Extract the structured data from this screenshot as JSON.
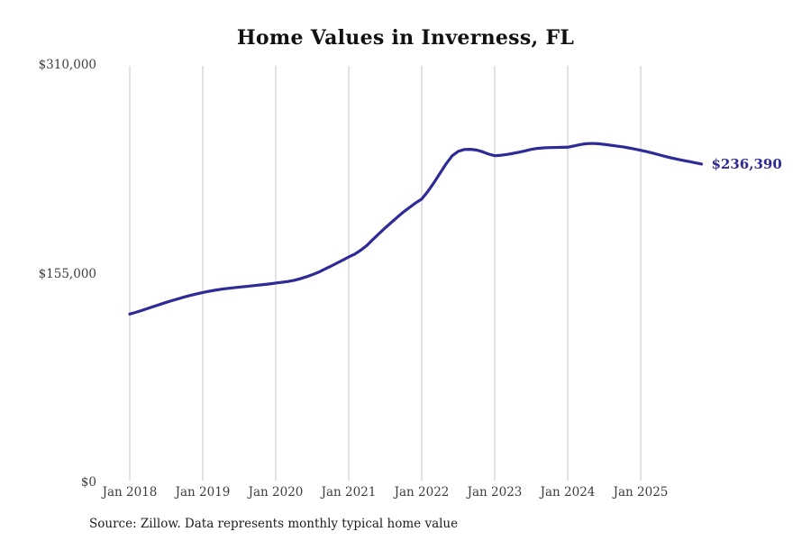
{
  "page": {
    "background": "#ffffff"
  },
  "chart_data": {
    "type": "line",
    "title": "Home Values in Inverness, FL",
    "xlabel": "",
    "ylabel": "",
    "ylim": [
      0,
      310000
    ],
    "grid": "vertical-only",
    "legend": "none",
    "x_unit": "month",
    "x_start": "2018-01",
    "x_end": "2025-11",
    "x_tick_labels": [
      "Jan 2018",
      "Jan 2019",
      "Jan 2020",
      "Jan 2021",
      "Jan 2022",
      "Jan 2023",
      "Jan 2024",
      "Jan 2025"
    ],
    "x_tick_month_indexes": [
      0,
      12,
      24,
      36,
      48,
      60,
      72,
      84
    ],
    "y_ticks": [
      {
        "label": "$0",
        "value": 0
      },
      {
        "label": "$155,000",
        "value": 155000
      },
      {
        "label": "$310,000",
        "value": 310000
      }
    ],
    "series": [
      {
        "name": "Monthly typical home value",
        "color": "#2e2b97",
        "values": [
          125000,
          126300,
          127700,
          129200,
          130700,
          132200,
          133700,
          135100,
          136400,
          137700,
          138900,
          140000,
          141000,
          141900,
          142700,
          143400,
          144000,
          144500,
          145000,
          145400,
          145900,
          146400,
          146900,
          147400,
          148000,
          148600,
          149200,
          150000,
          151200,
          152600,
          154200,
          156000,
          158200,
          160400,
          162700,
          165000,
          167400,
          169500,
          172500,
          176000,
          180500,
          184800,
          189000,
          193000,
          197000,
          200800,
          204200,
          207500,
          210400,
          216000,
          222500,
          229500,
          236500,
          242500,
          245800,
          247200,
          247300,
          246800,
          245500,
          243800,
          242600,
          242900,
          243500,
          244300,
          245200,
          246200,
          247300,
          248000,
          248400,
          248600,
          248700,
          248800,
          248900,
          249800,
          250800,
          251500,
          251700,
          251500,
          251000,
          250400,
          249800,
          249200,
          248400,
          247500,
          246600,
          245600,
          244500,
          243300,
          242100,
          241000,
          240000,
          239100,
          238200,
          237300,
          236390
        ]
      }
    ],
    "end_label": "$236,390",
    "last_value": 236390,
    "source_note": "Source: Zillow. Data represents monthly typical home value",
    "line_color": "#2e2b97",
    "grid_color": "#c6c6c6"
  }
}
